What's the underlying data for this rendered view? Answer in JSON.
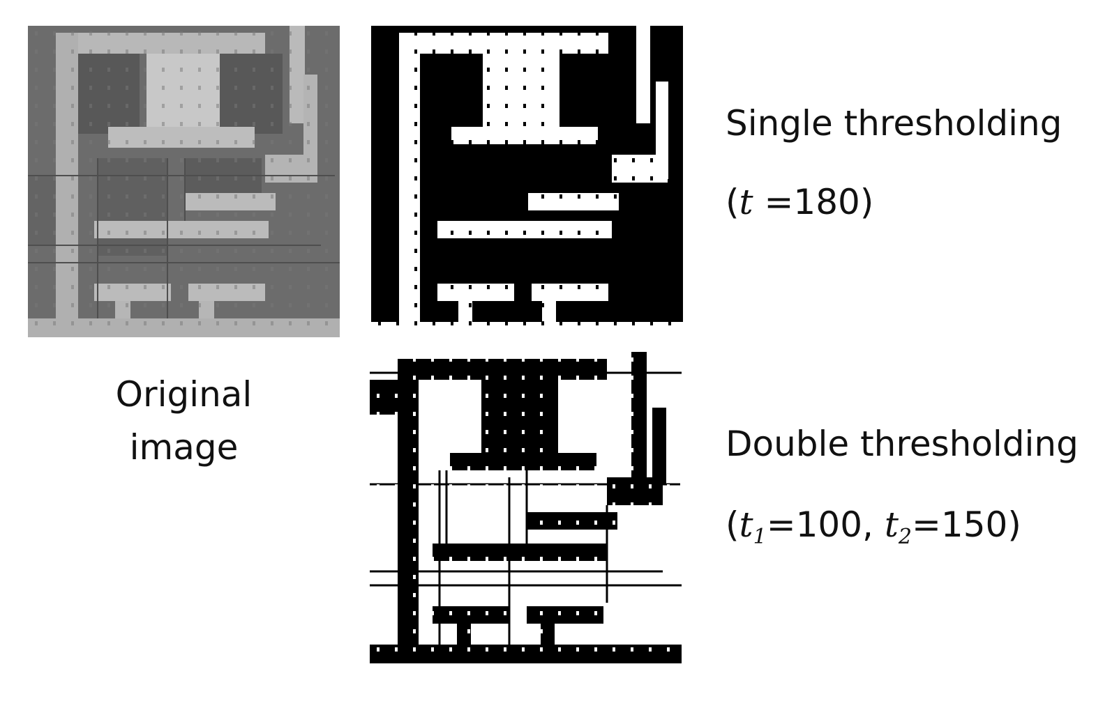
{
  "original": {
    "line1": "Original",
    "line2": "image"
  },
  "single": {
    "title": "Single thresholding",
    "open": "(",
    "var": "t",
    "value": " =180)"
  },
  "double": {
    "title": "Double thresholding",
    "open": "(",
    "var1": "t",
    "sub1": "1",
    "val1": "=100, ",
    "var2": "t",
    "sub2": "2",
    "val2": "=150)"
  }
}
